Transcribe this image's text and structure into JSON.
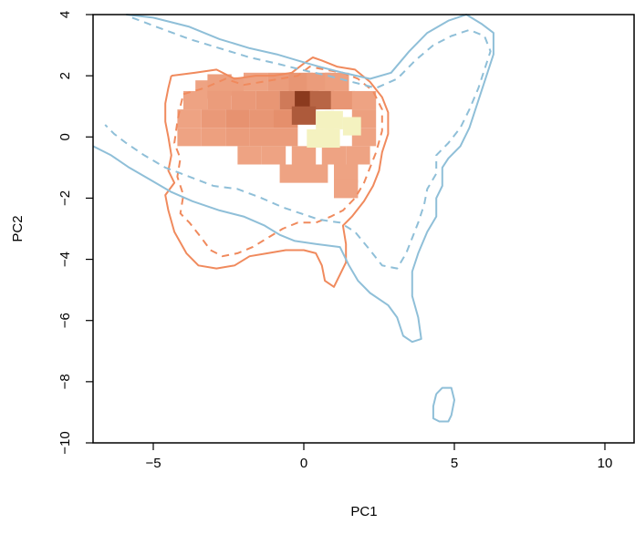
{
  "chart_data": {
    "type": "heatmap",
    "xlabel": "PC1",
    "ylabel": "PC2",
    "xlim": [
      -7,
      11
    ],
    "ylim": [
      -10,
      4
    ],
    "xticks": [
      "-5",
      "0",
      "5",
      "10"
    ],
    "yticks": [
      "-10",
      "-8",
      "-6",
      "-4",
      "-2",
      "0",
      "2",
      "4"
    ],
    "grid": false,
    "colors": {
      "orange_contour": "#f08a5d",
      "blue_contour": "#8fbfd8",
      "heat_low": "#f7b79a",
      "heat_mid": "#e58f6c",
      "heat_high": "#8b3a1e",
      "heat_peak_alt": "#f4f2c0"
    },
    "contours": [
      {
        "group": "orange",
        "style": "solid",
        "points": [
          [
            -4.4,
            2.0
          ],
          [
            -3.6,
            2.1
          ],
          [
            -2.9,
            2.2
          ],
          [
            -2.3,
            1.9
          ],
          [
            -1.6,
            2.0
          ],
          [
            -1.0,
            2.0
          ],
          [
            -0.4,
            2.1
          ],
          [
            0.0,
            2.4
          ],
          [
            0.3,
            2.6
          ],
          [
            0.6,
            2.5
          ],
          [
            1.1,
            2.3
          ],
          [
            1.7,
            2.2
          ],
          [
            2.2,
            1.8
          ],
          [
            2.6,
            1.3
          ],
          [
            2.8,
            0.8
          ],
          [
            2.8,
            0.1
          ],
          [
            2.6,
            -0.5
          ],
          [
            2.5,
            -1.1
          ],
          [
            2.3,
            -1.6
          ],
          [
            2.0,
            -2.1
          ],
          [
            1.6,
            -2.6
          ],
          [
            1.3,
            -2.9
          ],
          [
            1.4,
            -3.5
          ],
          [
            1.4,
            -4.1
          ],
          [
            1.2,
            -4.5
          ],
          [
            1.0,
            -4.9
          ],
          [
            0.7,
            -4.7
          ],
          [
            0.6,
            -4.2
          ],
          [
            0.4,
            -3.8
          ],
          [
            0.0,
            -3.7
          ],
          [
            -0.6,
            -3.7
          ],
          [
            -1.2,
            -3.8
          ],
          [
            -1.8,
            -3.9
          ],
          [
            -2.3,
            -4.2
          ],
          [
            -2.9,
            -4.3
          ],
          [
            -3.5,
            -4.2
          ],
          [
            -3.9,
            -3.8
          ],
          [
            -4.3,
            -3.1
          ],
          [
            -4.5,
            -2.4
          ],
          [
            -4.6,
            -1.9
          ],
          [
            -4.3,
            -1.5
          ],
          [
            -4.5,
            -1.1
          ],
          [
            -4.4,
            -0.6
          ],
          [
            -4.5,
            0.0
          ],
          [
            -4.6,
            0.5
          ],
          [
            -4.6,
            1.1
          ],
          [
            -4.5,
            1.6
          ],
          [
            -4.4,
            2.0
          ]
        ]
      },
      {
        "group": "orange",
        "style": "dashed",
        "points": [
          [
            -4.0,
            1.4
          ],
          [
            -3.3,
            1.6
          ],
          [
            -2.6,
            1.9
          ],
          [
            -2.0,
            1.7
          ],
          [
            -1.4,
            1.8
          ],
          [
            -0.8,
            1.9
          ],
          [
            -0.2,
            2.0
          ],
          [
            0.2,
            2.3
          ],
          [
            0.7,
            2.2
          ],
          [
            1.3,
            2.1
          ],
          [
            1.8,
            1.9
          ],
          [
            2.3,
            1.5
          ],
          [
            2.6,
            0.9
          ],
          [
            2.6,
            0.2
          ],
          [
            2.4,
            -0.5
          ],
          [
            2.2,
            -1.0
          ],
          [
            2.0,
            -1.5
          ],
          [
            1.7,
            -2.0
          ],
          [
            1.3,
            -2.4
          ],
          [
            0.9,
            -2.6
          ],
          [
            0.4,
            -2.8
          ],
          [
            -0.2,
            -2.8
          ],
          [
            -0.7,
            -3.0
          ],
          [
            -1.2,
            -3.3
          ],
          [
            -1.7,
            -3.6
          ],
          [
            -2.2,
            -3.8
          ],
          [
            -2.7,
            -3.9
          ],
          [
            -3.1,
            -3.7
          ],
          [
            -3.4,
            -3.3
          ],
          [
            -3.8,
            -2.8
          ],
          [
            -4.1,
            -2.5
          ],
          [
            -4.0,
            -1.9
          ],
          [
            -4.2,
            -1.3
          ],
          [
            -4.1,
            -0.7
          ],
          [
            -4.3,
            -0.2
          ],
          [
            -4.2,
            0.5
          ],
          [
            -4.1,
            1.0
          ],
          [
            -4.0,
            1.4
          ]
        ]
      },
      {
        "group": "blue",
        "style": "solid",
        "points": [
          [
            -5.9,
            4.0
          ],
          [
            -5.0,
            3.9
          ],
          [
            -3.8,
            3.6
          ],
          [
            -2.8,
            3.2
          ],
          [
            -1.8,
            2.9
          ],
          [
            -0.9,
            2.7
          ],
          [
            -0.2,
            2.5
          ],
          [
            0.5,
            2.3
          ],
          [
            1.3,
            2.1
          ],
          [
            2.2,
            1.9
          ],
          [
            2.9,
            2.1
          ],
          [
            3.5,
            2.8
          ],
          [
            4.1,
            3.4
          ],
          [
            4.8,
            3.8
          ],
          [
            5.4,
            4.0
          ],
          [
            5.9,
            3.7
          ],
          [
            6.3,
            3.4
          ],
          [
            6.3,
            2.7
          ],
          [
            6.1,
            2.1
          ],
          [
            5.9,
            1.5
          ],
          [
            5.7,
            0.9
          ],
          [
            5.5,
            0.3
          ],
          [
            5.2,
            -0.3
          ],
          [
            4.8,
            -0.7
          ],
          [
            4.6,
            -1.0
          ],
          [
            4.6,
            -1.6
          ],
          [
            4.4,
            -2.0
          ],
          [
            4.4,
            -2.6
          ],
          [
            4.1,
            -3.1
          ],
          [
            3.8,
            -3.8
          ],
          [
            3.6,
            -4.4
          ],
          [
            3.6,
            -5.2
          ],
          [
            3.8,
            -5.9
          ],
          [
            3.9,
            -6.6
          ],
          [
            3.6,
            -6.7
          ],
          [
            3.3,
            -6.5
          ],
          [
            3.1,
            -5.9
          ],
          [
            2.8,
            -5.5
          ],
          [
            2.2,
            -5.1
          ],
          [
            1.8,
            -4.7
          ],
          [
            1.5,
            -4.2
          ],
          [
            1.2,
            -3.6
          ],
          [
            0.4,
            -3.5
          ],
          [
            -0.3,
            -3.4
          ],
          [
            -0.8,
            -3.2
          ],
          [
            -1.3,
            -2.9
          ],
          [
            -2.0,
            -2.6
          ],
          [
            -2.8,
            -2.4
          ],
          [
            -3.7,
            -2.1
          ],
          [
            -4.4,
            -1.8
          ],
          [
            -5.1,
            -1.4
          ],
          [
            -5.8,
            -1.0
          ],
          [
            -6.4,
            -0.6
          ],
          [
            -7.0,
            -0.3
          ]
        ]
      },
      {
        "group": "blue",
        "style": "dashed",
        "points": [
          [
            -5.7,
            3.9
          ],
          [
            -4.9,
            3.6
          ],
          [
            -3.8,
            3.2
          ],
          [
            -2.8,
            2.9
          ],
          [
            -1.8,
            2.6
          ],
          [
            -0.9,
            2.4
          ],
          [
            -0.1,
            2.2
          ],
          [
            0.8,
            2.0
          ],
          [
            1.6,
            1.8
          ],
          [
            2.4,
            1.6
          ],
          [
            3.1,
            1.9
          ],
          [
            3.7,
            2.5
          ],
          [
            4.3,
            3.0
          ],
          [
            4.9,
            3.3
          ],
          [
            5.5,
            3.5
          ],
          [
            6.0,
            3.3
          ],
          [
            6.2,
            2.8
          ],
          [
            6.0,
            2.2
          ],
          [
            5.8,
            1.6
          ],
          [
            5.5,
            0.9
          ],
          [
            5.2,
            0.3
          ],
          [
            4.8,
            -0.2
          ],
          [
            4.4,
            -0.6
          ],
          [
            4.4,
            -1.2
          ],
          [
            4.1,
            -1.7
          ],
          [
            4.0,
            -2.2
          ],
          [
            3.8,
            -2.8
          ],
          [
            3.6,
            -3.3
          ],
          [
            3.4,
            -3.8
          ],
          [
            3.1,
            -4.3
          ],
          [
            2.6,
            -4.2
          ],
          [
            2.2,
            -3.7
          ],
          [
            1.7,
            -3.1
          ],
          [
            1.2,
            -2.8
          ],
          [
            0.5,
            -2.7
          ],
          [
            -0.1,
            -2.5
          ],
          [
            -0.7,
            -2.3
          ],
          [
            -1.4,
            -2.0
          ],
          [
            -2.2,
            -1.7
          ],
          [
            -3.0,
            -1.6
          ],
          [
            -3.8,
            -1.3
          ],
          [
            -4.6,
            -1.0
          ],
          [
            -5.3,
            -0.6
          ],
          [
            -5.9,
            -0.2
          ],
          [
            -6.3,
            0.1
          ],
          [
            -6.6,
            0.4
          ]
        ]
      },
      {
        "group": "blue",
        "style": "solid",
        "points": [
          [
            4.4,
            -8.4
          ],
          [
            4.6,
            -8.2
          ],
          [
            4.9,
            -8.2
          ],
          [
            5.0,
            -8.6
          ],
          [
            4.9,
            -9.1
          ],
          [
            4.8,
            -9.3
          ],
          [
            4.5,
            -9.3
          ],
          [
            4.3,
            -9.2
          ],
          [
            4.3,
            -8.8
          ],
          [
            4.4,
            -8.4
          ]
        ]
      }
    ],
    "heatmap_cells": [
      {
        "x": -3.2,
        "y": 1.55,
        "density": 0.3
      },
      {
        "x": -2.8,
        "y": 1.75,
        "density": 0.35
      },
      {
        "x": -2.4,
        "y": 1.65,
        "density": 0.35
      },
      {
        "x": -1.6,
        "y": 1.8,
        "density": 0.3
      },
      {
        "x": -0.8,
        "y": 1.8,
        "density": 0.4
      },
      {
        "x": -0.1,
        "y": 1.8,
        "density": 0.5
      },
      {
        "x": 0.5,
        "y": 1.8,
        "density": 0.4
      },
      {
        "x": 1.1,
        "y": 1.8,
        "density": 0.35
      },
      {
        "x": -3.6,
        "y": 1.2,
        "density": 0.3
      },
      {
        "x": -2.8,
        "y": 1.2,
        "density": 0.4
      },
      {
        "x": -2.0,
        "y": 1.2,
        "density": 0.45
      },
      {
        "x": -1.2,
        "y": 1.2,
        "density": 0.5
      },
      {
        "x": -0.4,
        "y": 1.2,
        "density": 0.7
      },
      {
        "x": 0.1,
        "y": 1.2,
        "density": 1.0
      },
      {
        "x": 0.6,
        "y": 1.2,
        "density": 0.8
      },
      {
        "x": 1.3,
        "y": 1.2,
        "density": 0.5
      },
      {
        "x": 2.0,
        "y": 1.2,
        "density": 0.3
      },
      {
        "x": -3.8,
        "y": 0.6,
        "density": 0.3
      },
      {
        "x": -3.0,
        "y": 0.6,
        "density": 0.45
      },
      {
        "x": -2.2,
        "y": 0.6,
        "density": 0.55
      },
      {
        "x": -1.4,
        "y": 0.6,
        "density": 0.5
      },
      {
        "x": -0.6,
        "y": 0.6,
        "density": 0.6
      },
      {
        "x": 0.0,
        "y": 0.7,
        "density": 0.85
      },
      {
        "x": 2.0,
        "y": 0.6,
        "density": 0.35
      },
      {
        "x": -3.8,
        "y": 0.0,
        "density": 0.3
      },
      {
        "x": -3.0,
        "y": 0.0,
        "density": 0.35
      },
      {
        "x": -2.2,
        "y": 0.0,
        "density": 0.4
      },
      {
        "x": -1.4,
        "y": 0.0,
        "density": 0.4
      },
      {
        "x": -0.6,
        "y": 0.0,
        "density": 0.4
      },
      {
        "x": 2.0,
        "y": 0.0,
        "density": 0.3
      },
      {
        "x": -1.8,
        "y": -0.6,
        "density": 0.3
      },
      {
        "x": -1.0,
        "y": -0.6,
        "density": 0.3
      },
      {
        "x": 0.0,
        "y": -0.6,
        "density": 0.3
      },
      {
        "x": 1.0,
        "y": -0.6,
        "density": 0.3
      },
      {
        "x": 1.8,
        "y": -0.6,
        "density": 0.3
      },
      {
        "x": -0.4,
        "y": -1.2,
        "density": 0.3
      },
      {
        "x": 0.4,
        "y": -1.2,
        "density": 0.3
      },
      {
        "x": 1.4,
        "y": -1.2,
        "density": 0.3
      },
      {
        "x": 1.4,
        "y": -1.7,
        "density": 0.3
      }
    ],
    "peak_cells": [
      {
        "x": 0.7,
        "y": 0.55
      },
      {
        "x": 1.0,
        "y": 0.55
      },
      {
        "x": 0.4,
        "y": -0.05
      },
      {
        "x": 0.9,
        "y": -0.05
      },
      {
        "x": 1.6,
        "y": 0.35
      }
    ]
  }
}
